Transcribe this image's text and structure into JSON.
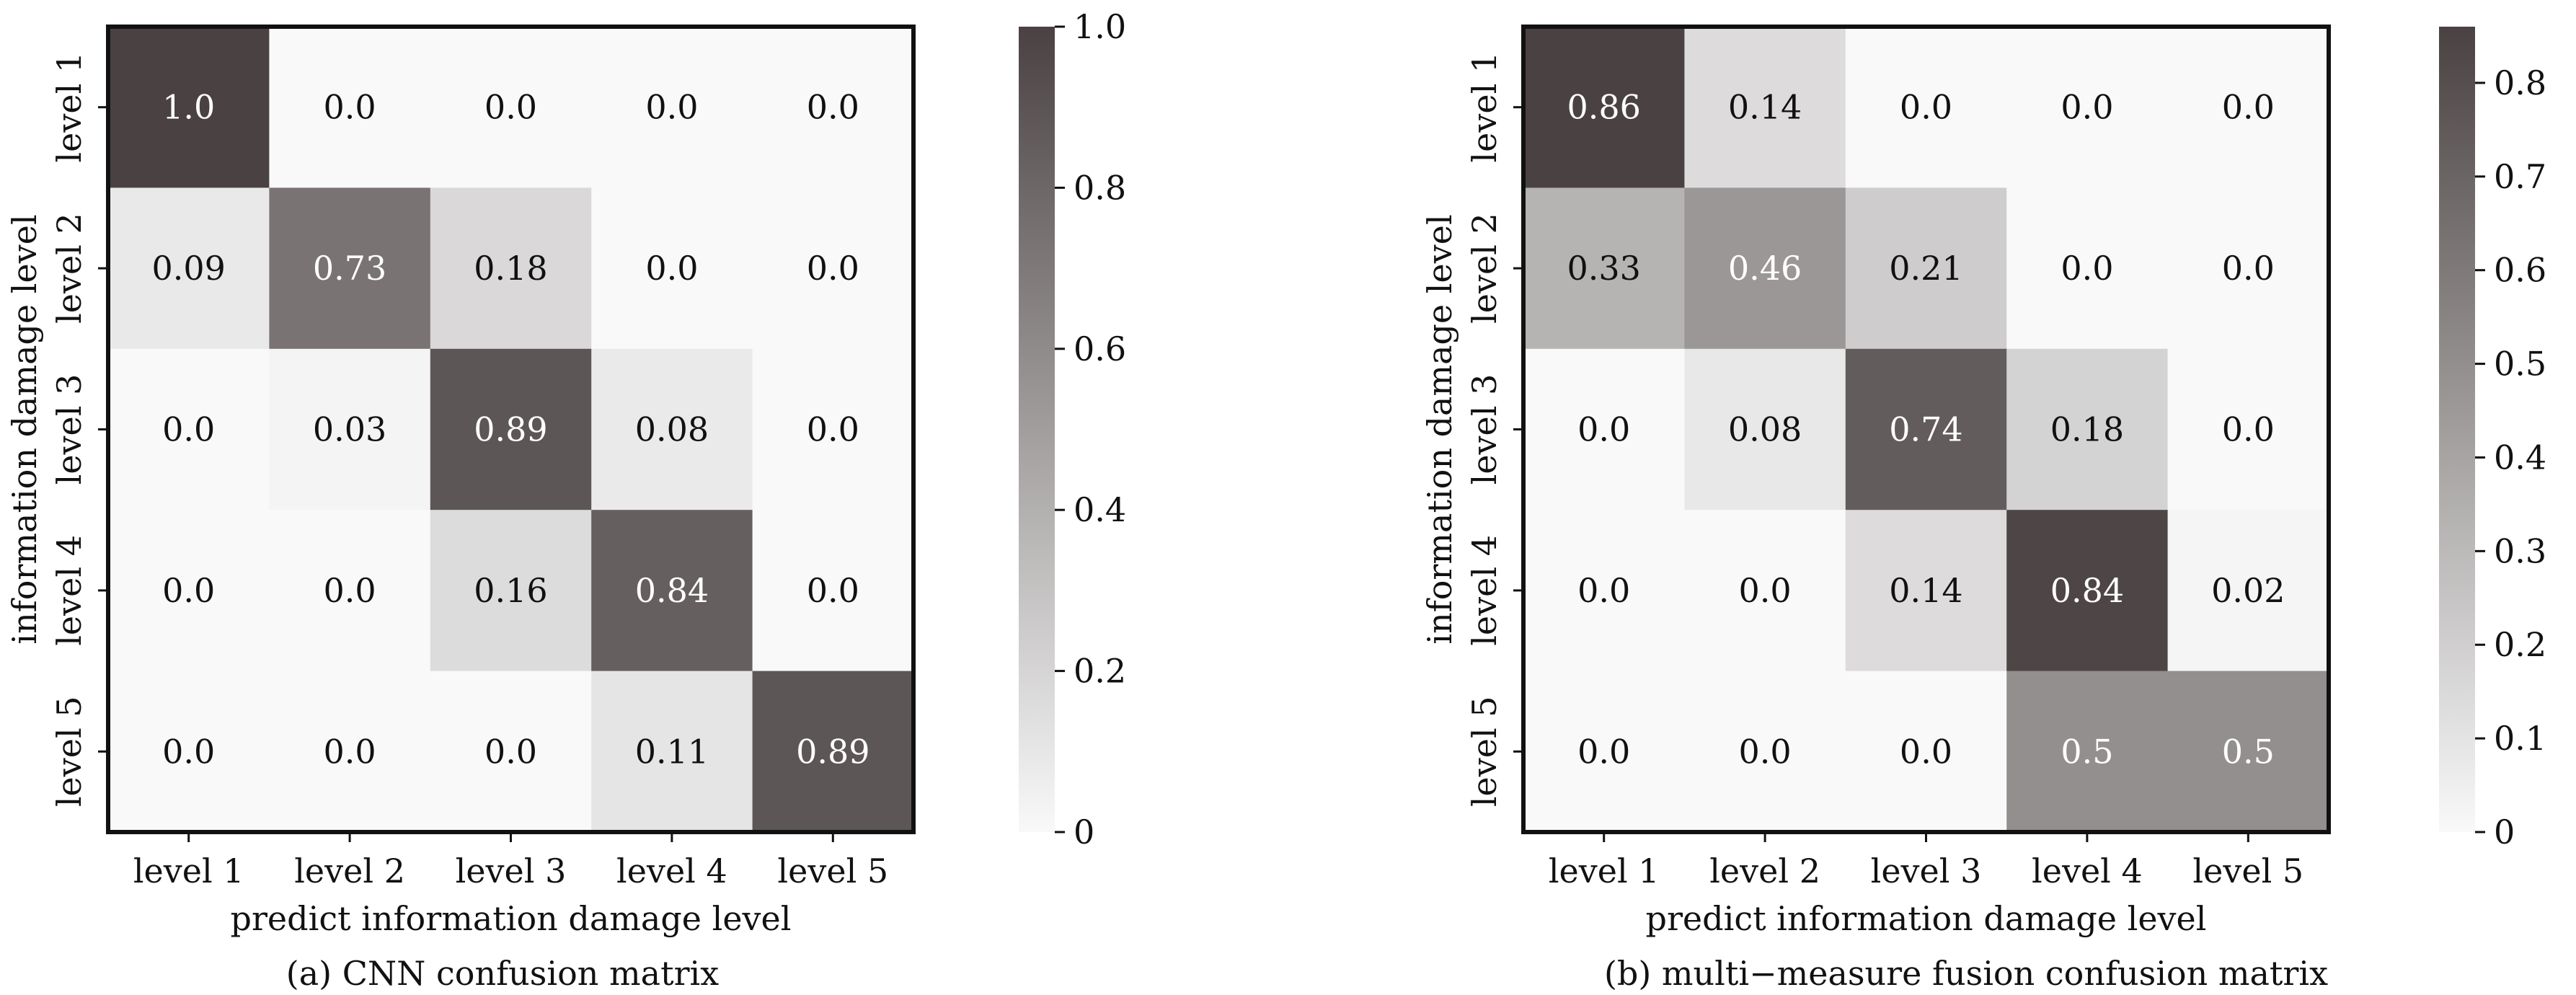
{
  "chart_data": [
    {
      "type": "heatmap",
      "caption": "(a) CNN confusion matrix",
      "xlabel": "predict information damage level",
      "ylabel": "information damage level",
      "x_categories": [
        "level 1",
        "level 2",
        "level 3",
        "level 4",
        "level 5"
      ],
      "y_categories": [
        "level 1",
        "level 2",
        "level 3",
        "level 4",
        "level 5"
      ],
      "cells": [
        [
          "1.0",
          "0.0",
          "0.0",
          "0.0",
          "0.0"
        ],
        [
          "0.09",
          "0.73",
          "0.18",
          "0.0",
          "0.0"
        ],
        [
          "0.0",
          "0.03",
          "0.89",
          "0.08",
          "0.0"
        ],
        [
          "0.0",
          "0.0",
          "0.16",
          "0.84",
          "0.0"
        ],
        [
          "0.0",
          "0.0",
          "0.0",
          "0.11",
          "0.89"
        ]
      ],
      "colorbar": {
        "range": [
          0,
          1.0
        ],
        "ticks": [
          0,
          0.2,
          0.4,
          0.6,
          0.8,
          1.0
        ],
        "tick_labels": [
          "0",
          "0.2",
          "0.4",
          "0.6",
          "0.8",
          "1.0"
        ]
      },
      "colormap": [
        "#f9f9f9",
        "#4a4242"
      ]
    },
    {
      "type": "heatmap",
      "caption": "(b) multi−measure fusion confusion matrix",
      "xlabel": "predict information damage level",
      "ylabel": "information damage level",
      "x_categories": [
        "level 1",
        "level 2",
        "level 3",
        "level 4",
        "level 5"
      ],
      "y_categories": [
        "level 1",
        "level 2",
        "level 3",
        "level 4",
        "level 5"
      ],
      "cells": [
        [
          "0.86",
          "0.14",
          "0.0",
          "0.0",
          "0.0"
        ],
        [
          "0.33",
          "0.46",
          "0.21",
          "0.0",
          "0.0"
        ],
        [
          "0.0",
          "0.08",
          "0.74",
          "0.18",
          "0.0"
        ],
        [
          "0.0",
          "0.0",
          "0.14",
          "0.84",
          "0.02"
        ],
        [
          "0.0",
          "0.0",
          "0.0",
          "0.5",
          "0.5"
        ]
      ],
      "colorbar": {
        "range": [
          0,
          0.86
        ],
        "ticks": [
          0,
          0.1,
          0.2,
          0.3,
          0.4,
          0.5,
          0.6,
          0.7,
          0.8
        ],
        "tick_labels": [
          "0",
          "0.1",
          "0.2",
          "0.3",
          "0.4",
          "0.5",
          "0.6",
          "0.7",
          "0.8"
        ]
      },
      "colormap": [
        "#f9f9f9",
        "#4a4242"
      ]
    }
  ]
}
